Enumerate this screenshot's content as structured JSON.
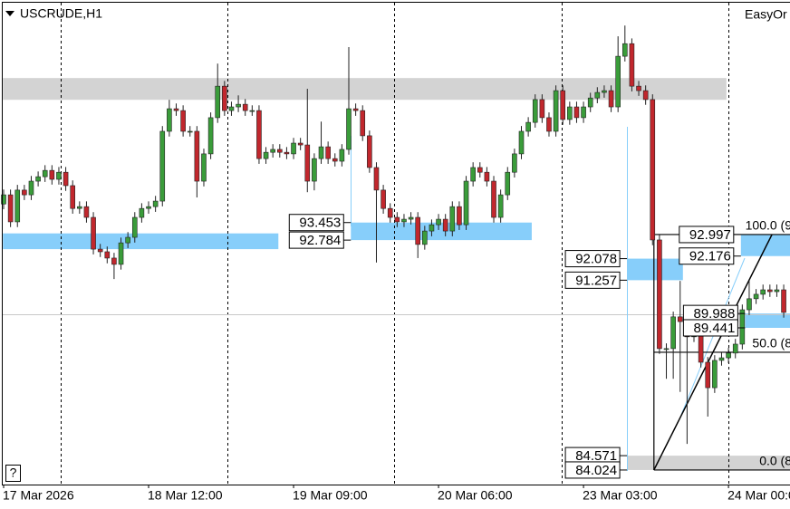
{
  "chart_data": {
    "type": "candlestick",
    "title": "USCRUDE,H1",
    "indicator_text": "EasyOr",
    "help_text": "?",
    "up_color": "#3a9c3a",
    "down_color": "#c1272d",
    "ylim": [
      83.47,
      101.83
    ],
    "categories": [
      "17 Mar 2026",
      null,
      null,
      null,
      null,
      null,
      null,
      null,
      null,
      null,
      null,
      null,
      null,
      null,
      null,
      null,
      null,
      null,
      null,
      null,
      null,
      "18 Mar 12:00",
      null,
      null,
      null,
      null,
      null,
      null,
      null,
      null,
      null,
      null,
      null,
      null,
      null,
      null,
      null,
      null,
      null,
      null,
      null,
      null,
      "19 Mar 09:00",
      null,
      null,
      null,
      null,
      null,
      null,
      null,
      null,
      null,
      null,
      null,
      null,
      null,
      null,
      null,
      null,
      null,
      null,
      null,
      null,
      "20 Mar 06:00",
      null,
      null,
      null,
      null,
      null,
      null,
      null,
      null,
      null,
      null,
      null,
      null,
      null,
      null,
      null,
      null,
      null,
      null,
      null,
      null,
      "23 Mar 03:00",
      null,
      null,
      null,
      null,
      null,
      null,
      null,
      null,
      null,
      null,
      null,
      null,
      null,
      null,
      null,
      null,
      null,
      null,
      null,
      null,
      "24 Mar 00:00",
      null,
      null,
      null,
      null,
      null,
      null,
      null,
      null
    ],
    "open": [
      94.16,
      94.51,
      93.48,
      94.69,
      94.51,
      95.03,
      95.2,
      95.44,
      95.1,
      95.37,
      94.86,
      93.99,
      94.06,
      93.65,
      92.44,
      92.34,
      92.1,
      91.86,
      92.68,
      92.89,
      93.65,
      93.99,
      94.06,
      94.27,
      96.93,
      97.79,
      97.72,
      96.93,
      96.93,
      95.03,
      96.07,
      97.45,
      98.65,
      97.72,
      97.86,
      97.96,
      97.72,
      97.72,
      95.89,
      96.13,
      96.24,
      96.13,
      96.07,
      96.48,
      96.41,
      95.03,
      95.89,
      96.34,
      95.89,
      95.79,
      96.24,
      97.79,
      97.72,
      96.76,
      95.55,
      94.69,
      93.99,
      93.65,
      93.48,
      93.58,
      93.65,
      92.62,
      93.13,
      93.37,
      93.58,
      93.13,
      94.06,
      93.37,
      95.03,
      95.55,
      95.37,
      95.03,
      93.65,
      94.51,
      95.37,
      96.07,
      96.93,
      97.27,
      98.14,
      97.45,
      96.93,
      98.48,
      97.38,
      97.86,
      97.45,
      97.86,
      98.2,
      98.41,
      98.48,
      97.86,
      99.79,
      100.27,
      98.65,
      98.48,
      98.14,
      92.79,
      88.65,
      88.65,
      89.86,
      89.68,
      89.1,
      89.58,
      88.13,
      87.16,
      88.2,
      88.3,
      88.48,
      88.82,
      90.13,
      90.55,
      90.72,
      90.89,
      90.82,
      90.89
    ],
    "high": [
      94.71,
      94.71,
      94.89,
      94.89,
      95.23,
      95.4,
      95.64,
      95.64,
      95.57,
      95.57,
      95.06,
      94.26,
      94.26,
      93.85,
      92.64,
      92.54,
      92.3,
      92.88,
      93.09,
      93.85,
      94.19,
      94.26,
      94.47,
      97.13,
      98.13,
      97.99,
      97.92,
      97.13,
      97.13,
      96.27,
      97.65,
      99.51,
      98.85,
      98.06,
      98.3,
      98.16,
      97.92,
      97.92,
      96.33,
      96.44,
      96.44,
      96.33,
      96.68,
      96.68,
      98.55,
      96.09,
      97.3,
      96.54,
      96.09,
      96.44,
      100.14,
      97.99,
      97.92,
      96.96,
      95.75,
      94.89,
      94.19,
      93.85,
      93.78,
      93.85,
      93.85,
      93.33,
      93.57,
      93.78,
      93.78,
      94.26,
      94.26,
      95.23,
      95.75,
      95.75,
      95.57,
      95.23,
      94.71,
      95.57,
      96.27,
      97.13,
      97.47,
      98.34,
      98.34,
      97.65,
      98.68,
      98.68,
      98.06,
      98.06,
      98.06,
      98.4,
      98.61,
      98.68,
      98.68,
      100.55,
      100.96,
      100.47,
      98.85,
      98.68,
      98.34,
      92.99,
      88.85,
      90.06,
      91.23,
      89.88,
      89.78,
      89.78,
      88.33,
      88.4,
      88.5,
      88.68,
      89.02,
      90.33,
      91.23,
      90.92,
      91.09,
      91.09,
      91.09,
      91.09
    ],
    "low": [
      93.96,
      93.28,
      93.28,
      94.31,
      94.31,
      94.83,
      95.0,
      94.9,
      94.9,
      94.66,
      93.79,
      93.79,
      93.45,
      92.24,
      92.14,
      91.9,
      91.3,
      91.66,
      92.48,
      92.69,
      93.45,
      93.79,
      93.86,
      94.07,
      96.73,
      97.52,
      96.73,
      96.73,
      94.41,
      94.83,
      95.87,
      97.25,
      97.52,
      97.52,
      97.66,
      97.52,
      97.52,
      95.69,
      95.69,
      95.93,
      95.93,
      95.87,
      95.87,
      96.21,
      94.61,
      94.68,
      95.69,
      95.69,
      95.59,
      95.59,
      96.04,
      97.52,
      96.56,
      95.35,
      91.93,
      93.79,
      93.45,
      93.28,
      93.28,
      93.38,
      92.1,
      92.42,
      92.93,
      93.17,
      92.93,
      92.93,
      93.17,
      93.17,
      94.83,
      95.17,
      94.83,
      93.45,
      93.45,
      94.31,
      95.17,
      95.87,
      96.73,
      97.07,
      97.25,
      96.73,
      96.73,
      97.18,
      97.18,
      97.25,
      97.25,
      97.66,
      98.0,
      98.21,
      97.66,
      97.66,
      99.59,
      98.45,
      98.28,
      97.94,
      92.59,
      88.45,
      87.5,
      87.5,
      87.0,
      85.02,
      88.9,
      87.93,
      86.06,
      86.96,
      88.0,
      88.1,
      88.28,
      88.62,
      89.93,
      90.35,
      90.52,
      90.62,
      90.62,
      89.83
    ],
    "close": [
      94.51,
      93.48,
      94.69,
      94.51,
      95.03,
      95.2,
      95.44,
      95.1,
      95.37,
      94.86,
      93.99,
      94.06,
      93.65,
      92.44,
      92.34,
      92.1,
      91.86,
      92.68,
      92.89,
      93.65,
      93.99,
      94.06,
      94.27,
      96.93,
      97.79,
      97.72,
      96.93,
      96.93,
      95.03,
      96.07,
      97.45,
      98.65,
      97.72,
      97.86,
      97.96,
      97.72,
      97.72,
      95.89,
      96.13,
      96.24,
      96.13,
      96.07,
      96.48,
      96.41,
      95.03,
      95.89,
      96.34,
      95.89,
      95.79,
      96.24,
      97.79,
      97.72,
      96.76,
      95.55,
      94.69,
      93.99,
      93.65,
      93.48,
      93.58,
      93.65,
      92.62,
      93.13,
      93.37,
      93.58,
      93.13,
      94.06,
      93.37,
      95.03,
      95.55,
      95.37,
      95.03,
      93.65,
      94.51,
      95.37,
      96.07,
      96.93,
      97.27,
      98.14,
      97.45,
      96.93,
      98.48,
      97.38,
      97.86,
      97.45,
      97.86,
      98.2,
      98.41,
      98.48,
      97.86,
      99.79,
      100.27,
      98.65,
      98.48,
      98.14,
      92.79,
      88.65,
      88.65,
      89.86,
      89.68,
      89.1,
      89.58,
      88.13,
      87.16,
      88.2,
      88.3,
      88.48,
      88.82,
      90.13,
      90.55,
      90.72,
      90.89,
      90.82,
      90.89,
      90.03
    ],
    "zones": [
      {
        "start": -0.1,
        "end": 104.7,
        "top": 98.96,
        "bottom": 98.13,
        "color": "#d3d3d3",
        "show_labels": false
      },
      {
        "start": -0.1,
        "end": 39.8,
        "top": 93.04,
        "bottom": 92.44,
        "color": "#87cefa",
        "show_labels": false
      },
      {
        "start": 50.3,
        "end": 76.5,
        "top": 93.453,
        "bottom": 92.784,
        "color": "#87cefa",
        "show_labels": true
      },
      {
        "start": 90.3,
        "end": 98.4,
        "top": 92.078,
        "bottom": 91.257,
        "color": "#87cefa",
        "show_labels": true
      },
      {
        "start": 106.8,
        "end": 114.5,
        "top": 92.997,
        "bottom": 92.176,
        "color": "#87cefa",
        "show_labels": true
      },
      {
        "start": 107.4,
        "end": 114.5,
        "top": 89.988,
        "bottom": 89.441,
        "color": "#87cefa",
        "show_labels": true
      },
      {
        "start": 90.3,
        "end": 114.5,
        "top": 84.571,
        "bottom": 84.024,
        "color": "#d3d3d3",
        "show_labels": true
      }
    ],
    "fibonacci": {
      "start": 94.2,
      "end": 114.5,
      "trend_end": 111.3,
      "levels": [
        {
          "label": "100.0 (9",
          "price": 92.997
        },
        {
          "label": "50.0 (8",
          "price": 88.511
        },
        {
          "label": "0.0 (8",
          "price": 84.024
        }
      ]
    }
  }
}
